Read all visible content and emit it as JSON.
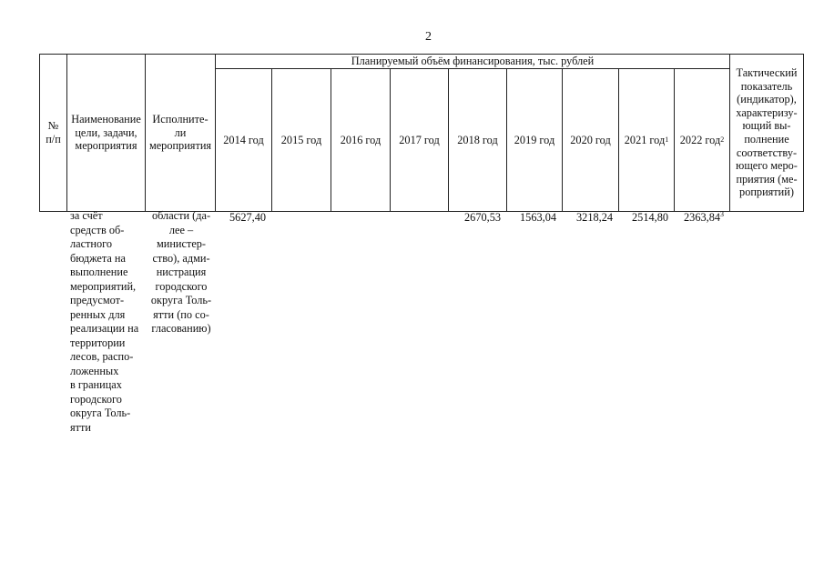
{
  "page_number": "2",
  "table": {
    "header": {
      "num": "№\nп/п",
      "name": "Наименование\nцели, задачи,\nмероприятия",
      "executor": "Исполните-\nли\nмероприятия",
      "funding_group": "Планируемый объём финансирования, тыс. рублей",
      "years": [
        {
          "label": "2014 год",
          "sup": ""
        },
        {
          "label": "2015 год",
          "sup": ""
        },
        {
          "label": "2016 год",
          "sup": ""
        },
        {
          "label": "2017 год",
          "sup": ""
        },
        {
          "label": "2018 год",
          "sup": ""
        },
        {
          "label": "2019 год",
          "sup": ""
        },
        {
          "label": "2020 год",
          "sup": ""
        },
        {
          "label": "2021 год",
          "sup": "1"
        },
        {
          "label": "2022 год",
          "sup": "2"
        }
      ],
      "indicator": "Тактический\nпоказатель\n(индикатор),\nхарактеризу-\nющий вы-\nполнение\nсоответству-\nющего меро-\nприятия (ме-\nроприятий)"
    },
    "row": {
      "name": "за счёт\nсредств об-\nластного\nбюджета на\nвыполнение\nмероприятий,\nпредусмот-\nренных для\nреализации на\nтерритории\nлесов, распо-\nложенных\nв границах\nгородского\nокруга Толь-\nятти",
      "executor": "области (да-\nлее –\nминистер-\nство), адми-\nнистрация\nгородского\nокруга Толь-\nятти (по со-\nгласованию)",
      "values": [
        {
          "value": "5627,40",
          "sup": ""
        },
        {
          "value": "",
          "sup": ""
        },
        {
          "value": "",
          "sup": ""
        },
        {
          "value": "",
          "sup": ""
        },
        {
          "value": "2670,53",
          "sup": ""
        },
        {
          "value": "1563,04",
          "sup": ""
        },
        {
          "value": "3218,24",
          "sup": ""
        },
        {
          "value": "2514,80",
          "sup": ""
        },
        {
          "value": "2363,84",
          "sup": "3"
        }
      ]
    }
  }
}
